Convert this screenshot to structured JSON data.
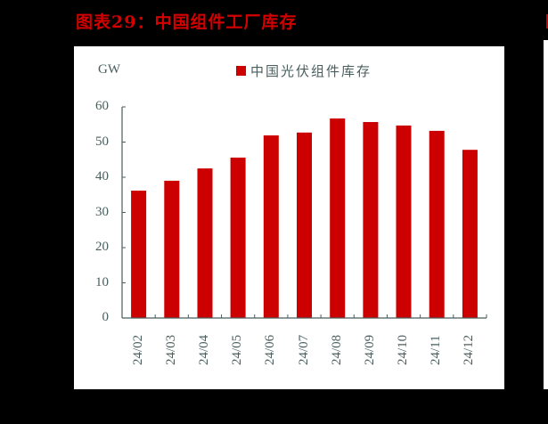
{
  "header": {
    "title": "图表29：中国组件工厂库存"
  },
  "colors": {
    "bar": "#cc0000",
    "title": "#d40000",
    "axis": "#4a5e5e",
    "background": "#000000",
    "panel": "#ffffff"
  },
  "chart_data": {
    "type": "bar",
    "title": "图表29：中国组件工厂库存",
    "xlabel": "",
    "ylabel": "GW",
    "ylim": [
      0,
      60
    ],
    "yticks": [
      0,
      10,
      20,
      30,
      40,
      50,
      60
    ],
    "grid": false,
    "legend_position": "top",
    "categories": [
      "24/02",
      "24/03",
      "24/04",
      "24/05",
      "24/06",
      "24/07",
      "24/08",
      "24/09",
      "24/10",
      "24/11",
      "24/12"
    ],
    "series": [
      {
        "name": "中国光伏组件库存",
        "color": "#cc0000",
        "values": [
          36.2,
          39.0,
          42.5,
          45.6,
          51.9,
          52.7,
          56.7,
          55.7,
          54.7,
          53.2,
          47.8
        ]
      }
    ]
  }
}
